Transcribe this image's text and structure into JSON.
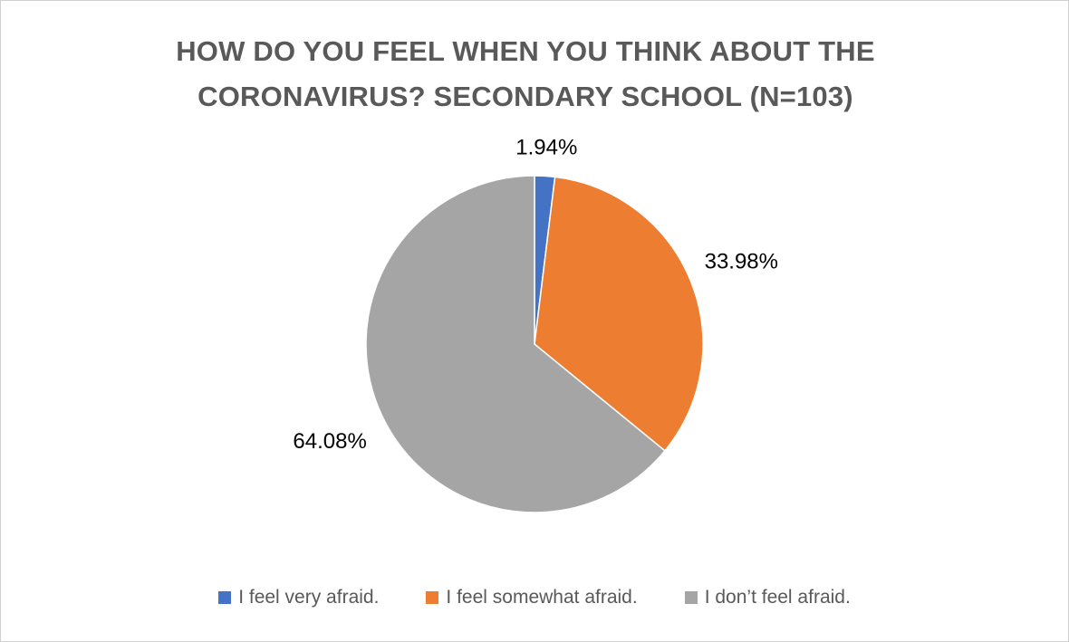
{
  "chart_data": {
    "type": "pie",
    "title_lines": [
      "HOW DO YOU FEEL WHEN YOU THINK ABOUT THE",
      "CORONAVIRUS? SECONDARY SCHOOL (N=103)"
    ],
    "slices": [
      {
        "name": "I feel very afraid.",
        "value": 1.94,
        "label": "1.94%",
        "color": "#4472C4"
      },
      {
        "name": "I feel somewhat afraid.",
        "value": 33.98,
        "label": "33.98%",
        "color": "#ED7D31"
      },
      {
        "name": "I don’t feel afraid.",
        "value": 64.08,
        "label": "64.08%",
        "color": "#A5A5A5"
      }
    ],
    "legend_position": "bottom"
  }
}
